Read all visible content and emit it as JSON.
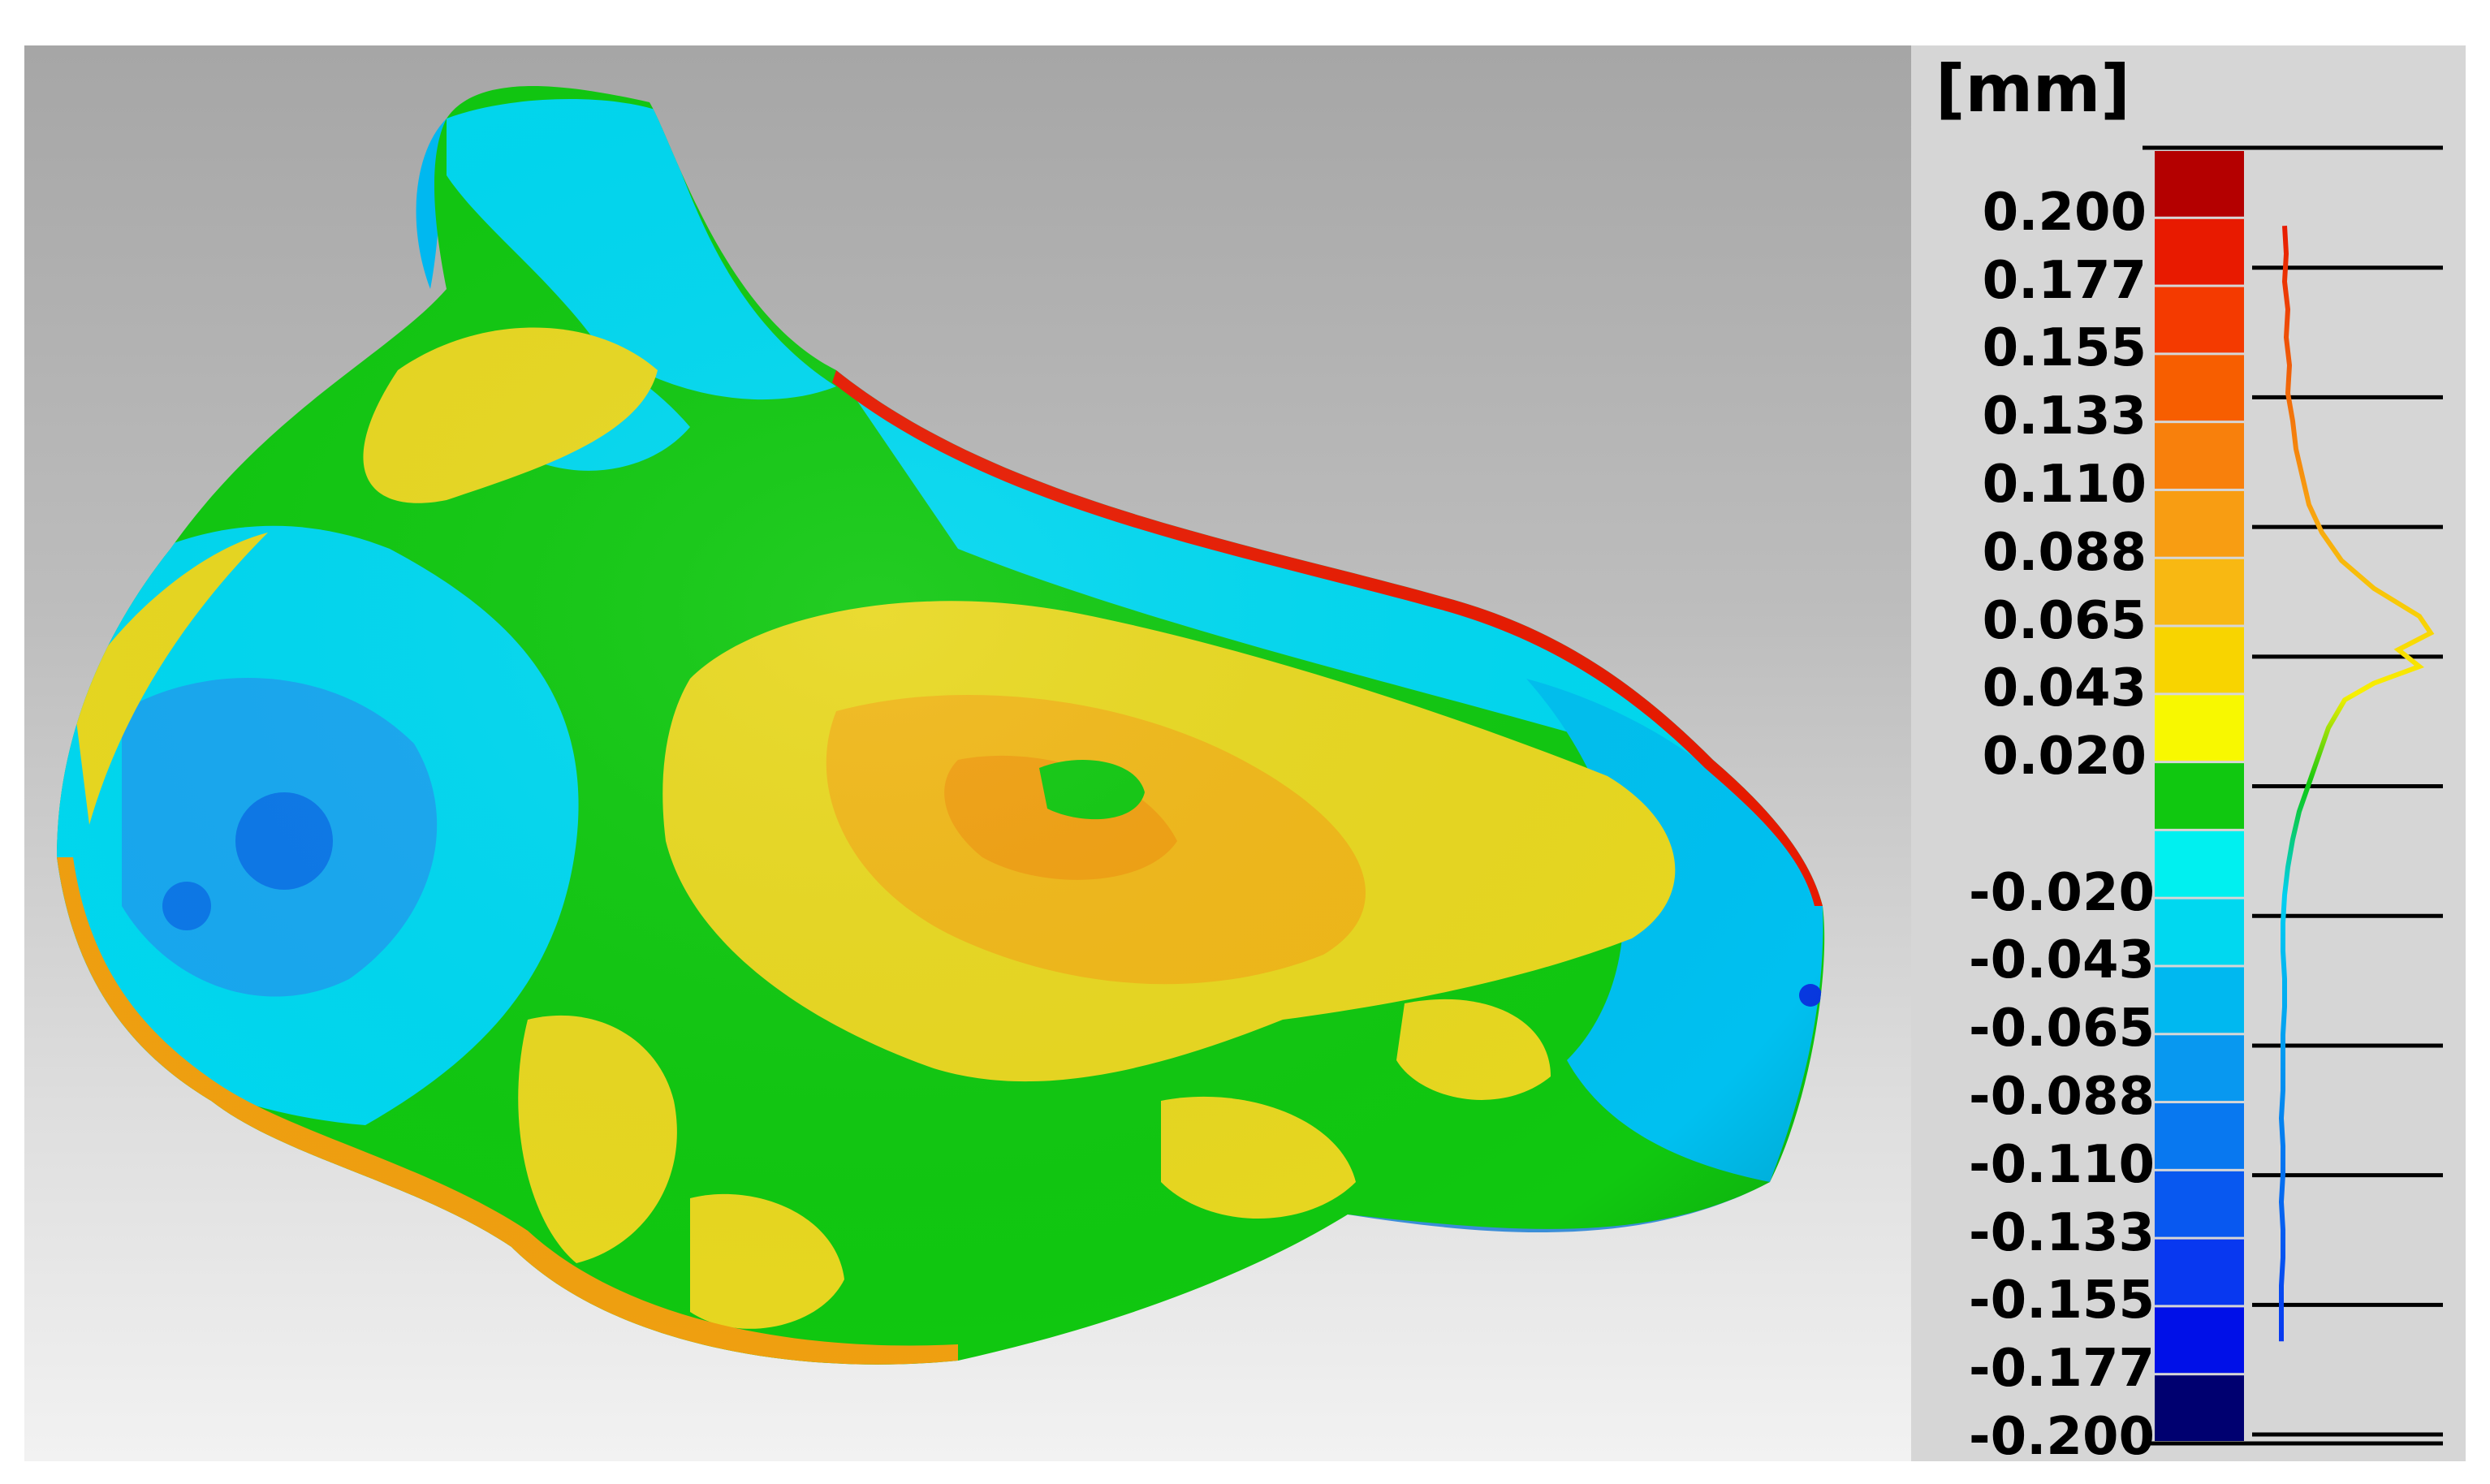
{
  "legend": {
    "unit": "[mm]",
    "labels": [
      "0.200",
      "0.177",
      "0.155",
      "0.133",
      "0.110",
      "0.088",
      "0.065",
      "0.043",
      "0.020",
      "-0.020",
      "-0.043",
      "-0.065",
      "-0.088",
      "-0.110",
      "-0.133",
      "-0.155",
      "-0.177",
      "-0.200"
    ],
    "bands": [
      "#b40000",
      "#e81a00",
      "#f43a00",
      "#f75e00",
      "#f8800c",
      "#f89d12",
      "#f8b812",
      "#f8d400",
      "#f8f800",
      "#10c810",
      "#00f0f0",
      "#00d8f0",
      "#00b8f0",
      "#0898f0",
      "#0878f0",
      "#0858f0",
      "#0838f0",
      "#0010e8",
      "#000070"
    ],
    "distribution": [
      [
        1,
        0.05
      ],
      [
        0.95,
        0.06
      ],
      [
        0.9,
        0.05
      ],
      [
        0.85,
        0.07
      ],
      [
        0.8,
        0.06
      ],
      [
        0.75,
        0.08
      ],
      [
        0.7,
        0.07
      ],
      [
        0.65,
        0.1
      ],
      [
        0.6,
        0.12
      ],
      [
        0.55,
        0.16
      ],
      [
        0.5,
        0.2
      ],
      [
        0.45,
        0.28
      ],
      [
        0.4,
        0.4
      ],
      [
        0.35,
        0.6
      ],
      [
        0.3,
        0.88
      ],
      [
        0.27,
        0.95
      ],
      [
        0.24,
        0.75
      ],
      [
        0.21,
        0.88
      ],
      [
        0.18,
        0.6
      ],
      [
        0.15,
        0.42
      ],
      [
        0.1,
        0.32
      ],
      [
        0.05,
        0.26
      ],
      [
        0,
        0.2
      ],
      [
        -0.05,
        0.14
      ],
      [
        -0.1,
        0.1
      ],
      [
        -0.15,
        0.07
      ],
      [
        -0.2,
        0.05
      ],
      [
        -0.25,
        0.04
      ],
      [
        -0.3,
        0.04
      ],
      [
        -0.35,
        0.05
      ],
      [
        -0.4,
        0.05
      ],
      [
        -0.45,
        0.04
      ],
      [
        -0.5,
        0.04
      ],
      [
        -0.55,
        0.04
      ],
      [
        -0.6,
        0.03
      ],
      [
        -0.65,
        0.04
      ],
      [
        -0.7,
        0.04
      ],
      [
        -0.75,
        0.03
      ],
      [
        -0.8,
        0.04
      ],
      [
        -0.85,
        0.04
      ],
      [
        -0.9,
        0.03
      ],
      [
        -0.95,
        0.03
      ],
      [
        -1,
        0.03
      ]
    ]
  },
  "colors": {
    "background_top": "#a6a6a6",
    "background_bottom": "#f2f2f2",
    "legend_panel": "#d6d6d6",
    "mesh_green": "#10c810",
    "mesh_cyan": "#00e0f0",
    "mesh_blue": "#1aa0f0",
    "mesh_yellow": "#e8d820",
    "mesh_orange": "#f0a010",
    "mesh_red": "#e81a00"
  },
  "icons": {
    "mesh": "deviation-colormap-mesh-icon"
  }
}
